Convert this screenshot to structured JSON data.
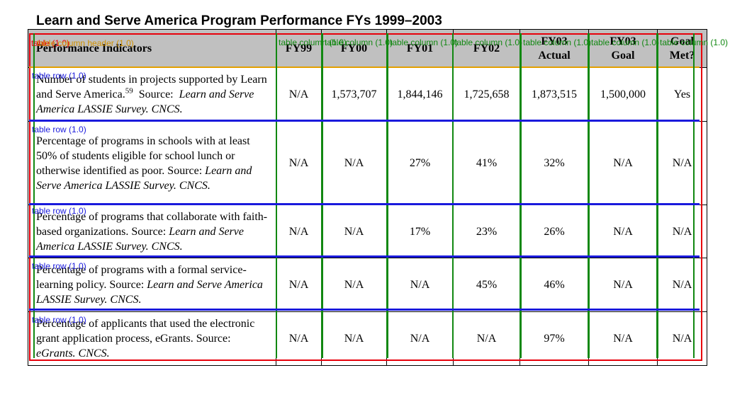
{
  "title": "Learn and Serve America Program Performance FYs 1999–2003",
  "table": {
    "headers": [
      {
        "lines": [
          "Performance Indicators"
        ]
      },
      {
        "lines": [
          "FY99"
        ]
      },
      {
        "lines": [
          "FY00"
        ]
      },
      {
        "lines": [
          "FY01"
        ]
      },
      {
        "lines": [
          "FY02"
        ]
      },
      {
        "lines": [
          "FY03",
          "Actual"
        ]
      },
      {
        "lines": [
          "FY03",
          "Goal"
        ]
      },
      {
        "lines": [
          "Goal",
          "Met?"
        ]
      }
    ],
    "rows": [
      {
        "indicator": "Number of students in projects supported by Learn and Serve America.",
        "footnote": "59",
        "source_prefix": "Source:",
        "source": "Learn and Serve America LASSIE Survey. CNCS.",
        "values": [
          "N/A",
          "1,573,707",
          "1,844,146",
          "1,725,658",
          "1,873,515",
          "1,500,000",
          "Yes"
        ]
      },
      {
        "indicator": "Percentage of programs in schools with at least 50% of students eligible for school lunch or otherwise identified as poor.",
        "footnote": "",
        "source_prefix": "Source:",
        "source": "Learn and Serve America LASSIE Survey. CNCS.",
        "values": [
          "N/A",
          "N/A",
          "27%",
          "41%",
          "32%",
          "N/A",
          "N/A"
        ]
      },
      {
        "indicator": "Percentage of programs that collaborate with faith-based organizations.",
        "footnote": "",
        "source_prefix": "Source:",
        "source": "Learn and Serve America LASSIE Survey. CNCS.",
        "values": [
          "N/A",
          "N/A",
          "17%",
          "23%",
          "26%",
          "N/A",
          "N/A"
        ]
      },
      {
        "indicator": "Percentage of programs with a formal service-learning policy.",
        "footnote": "",
        "source_prefix": "Source:",
        "source": "Learn and Serve America LASSIE Survey. CNCS.",
        "values": [
          "N/A",
          "N/A",
          "N/A",
          "45%",
          "46%",
          "N/A",
          "N/A"
        ]
      },
      {
        "indicator": "Percentage of applicants that used the electronic grant application process, eGrants.",
        "footnote": "",
        "source_prefix": "Source:",
        "source": "eGrants. CNCS.",
        "values": [
          "N/A",
          "N/A",
          "N/A",
          "N/A",
          "97%",
          "N/A",
          "N/A"
        ]
      }
    ]
  },
  "overlay": {
    "table_label": "table (1.0)",
    "header_label": "table column header (1.0)",
    "column_label": "table column (1.0)",
    "row_label": "table row (1.0)",
    "colors": {
      "table": "#e8000b",
      "row": "#1a1adc",
      "column": "#118811",
      "header": "#e3a000"
    }
  }
}
